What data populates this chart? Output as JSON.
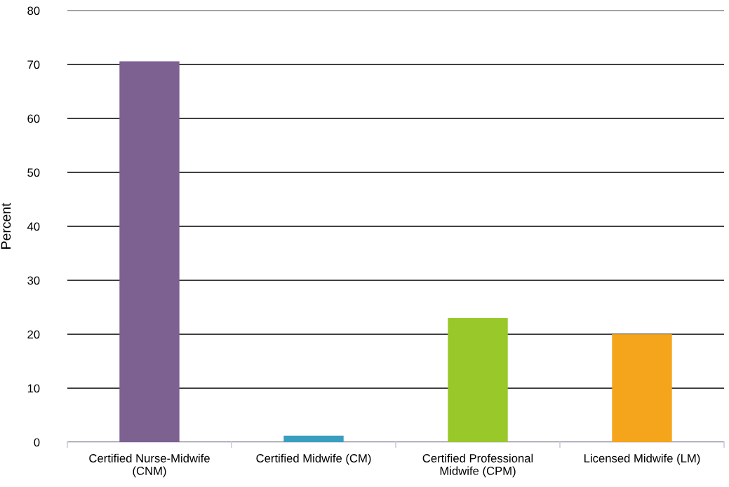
{
  "chart_data": {
    "type": "bar",
    "categories": [
      "Certified Nurse-Midwife\n(CNM)",
      "Certified Midwife (CM)",
      "Certified Professional\nMidwife (CPM)",
      "Licensed Midwife (LM)"
    ],
    "values": [
      70.6,
      1.2,
      23.0,
      20.0
    ],
    "colors": [
      "#7d6191",
      "#3a9fbf",
      "#99c82a",
      "#f4a51c"
    ],
    "ylabel": "Percent",
    "ylim": [
      0,
      80
    ],
    "yticks": [
      0,
      10,
      20,
      30,
      40,
      50,
      60,
      70,
      80
    ],
    "grid": "y"
  }
}
